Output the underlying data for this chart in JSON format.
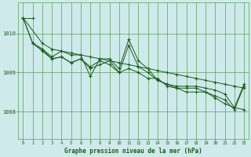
{
  "xlabel": "Graphe pression niveau de la mer (hPa)",
  "background_color": "#ceeaea",
  "grid_color": "#5a9e5a",
  "line_color": "#1a5c1a",
  "xlim": [
    -0.5,
    23.5
  ],
  "ylim": [
    1007.3,
    1010.8
  ],
  "yticks": [
    1008,
    1009,
    1010
  ],
  "xticks": [
    0,
    1,
    2,
    3,
    4,
    5,
    6,
    7,
    8,
    9,
    10,
    11,
    12,
    13,
    14,
    15,
    16,
    17,
    18,
    19,
    20,
    21,
    22,
    23
  ],
  "series": [
    [
      1010.4,
      1010.4,
      null,
      null,
      null,
      null,
      null,
      null,
      null,
      null,
      null,
      null,
      null,
      null,
      null,
      null,
      null,
      null,
      null,
      null,
      null,
      null,
      null,
      null
    ],
    [
      1010.4,
      null,
      1009.75,
      1009.6,
      1009.55,
      1009.5,
      1009.45,
      1009.4,
      1009.35,
      1009.3,
      1009.25,
      1009.2,
      1009.15,
      1009.1,
      1009.05,
      1009.0,
      1008.95,
      1008.9,
      1008.85,
      1008.8,
      1008.75,
      1008.7,
      1008.65,
      1008.6
    ],
    [
      1010.4,
      1009.75,
      1009.6,
      1009.4,
      1009.55,
      1009.45,
      1009.45,
      1008.9,
      1009.35,
      1009.35,
      1009.1,
      1009.85,
      1009.3,
      1009.1,
      1008.8,
      1008.7,
      1008.65,
      1008.65,
      1008.65,
      1008.6,
      1008.55,
      1008.45,
      1008.1,
      1008.05
    ],
    [
      1010.4,
      1009.75,
      1009.6,
      1009.35,
      1009.4,
      1009.25,
      1009.35,
      1009.1,
      1009.2,
      1009.3,
      1009.0,
      1009.1,
      1009.0,
      1008.85,
      1008.85,
      1008.65,
      1008.6,
      1008.5,
      1008.5,
      1008.5,
      1008.35,
      1008.2,
      1008.1,
      1008.7
    ],
    [
      null,
      1009.75,
      1009.55,
      1009.35,
      1009.4,
      1009.25,
      1009.35,
      1009.15,
      1009.3,
      1009.2,
      1009.0,
      1009.7,
      1009.15,
      1009.0,
      1008.8,
      1008.7,
      1008.6,
      1008.6,
      1008.6,
      1008.5,
      1008.4,
      1008.3,
      1008.05,
      1008.65
    ]
  ]
}
